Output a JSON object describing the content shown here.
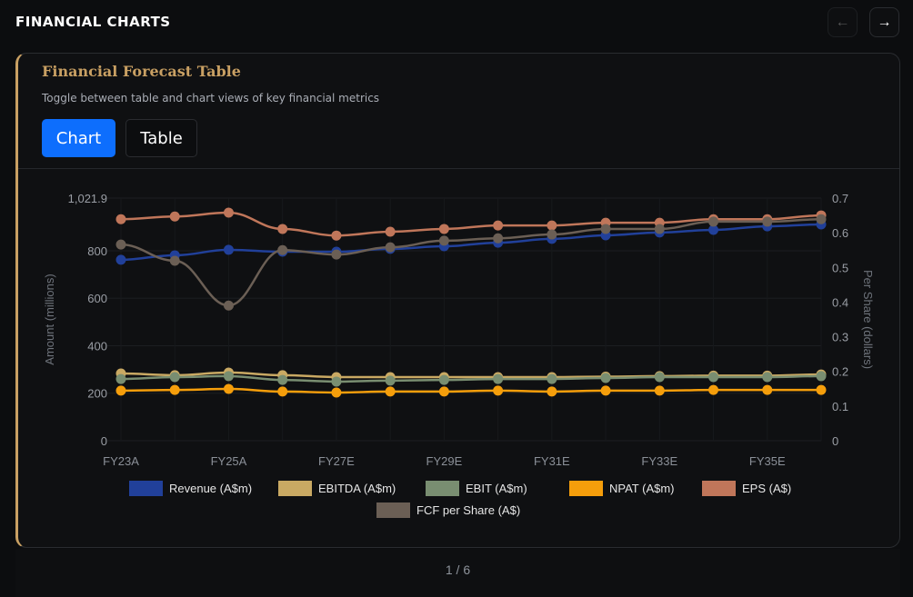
{
  "header": {
    "title": "FINANCIAL CHARTS",
    "prev_icon": "arrow-left-icon",
    "next_icon": "arrow-right-icon",
    "prev_label": "←",
    "next_label": "→"
  },
  "card": {
    "title": "Financial Forecast Table",
    "subtitle": "Toggle between table and chart views of key financial metrics",
    "toggle": {
      "chart_label": "Chart",
      "table_label": "Table",
      "active": "Chart",
      "active_color": "#0d6efd"
    },
    "accent_color": "#c9a063"
  },
  "chart_data": {
    "type": "line",
    "categories": [
      "FY23A",
      "FY24A",
      "FY25A",
      "FY26E",
      "FY27E",
      "FY28E",
      "FY29E",
      "FY30E",
      "FY31E",
      "FY32E",
      "FY33E",
      "FY34E",
      "FY35E",
      "FY36E"
    ],
    "x_tick_labels": [
      "FY23A",
      "FY25A",
      "FY27E",
      "FY29E",
      "FY31E",
      "FY33E",
      "FY35E"
    ],
    "ylabel_left": "Amount (millions)",
    "ylabel_right": "Per Share (dollars)",
    "ylim_left": [
      0,
      1021.9
    ],
    "yticks_left": [
      "0",
      "200",
      "400",
      "600",
      "800",
      "1,021.9"
    ],
    "ylim_right": [
      0,
      0.7
    ],
    "yticks_right": [
      "0",
      "0.1",
      "0.2",
      "0.3",
      "0.4",
      "0.5",
      "0.6",
      "0.7"
    ],
    "grid": true,
    "legend_position": "bottom",
    "series": [
      {
        "name": "Revenue (A$m)",
        "axis": "left",
        "color": "#21409a",
        "values": [
          762,
          781,
          804,
          796,
          796,
          808,
          819,
          834,
          850,
          865,
          877,
          888,
          903,
          911
        ]
      },
      {
        "name": "EBITDA (A$m)",
        "axis": "left",
        "color": "#c9a963",
        "values": [
          283,
          276,
          287,
          276,
          268,
          268,
          268,
          268,
          268,
          270,
          272,
          274,
          274,
          279
        ]
      },
      {
        "name": "EBIT (A$m)",
        "axis": "left",
        "color": "#798e71",
        "values": [
          260,
          268,
          272,
          256,
          249,
          253,
          256,
          260,
          260,
          264,
          268,
          268,
          268,
          272
        ]
      },
      {
        "name": "NPAT (A$m)",
        "axis": "left",
        "color": "#f59e0b",
        "values": [
          211,
          214,
          218,
          207,
          203,
          207,
          207,
          211,
          207,
          211,
          211,
          214,
          214,
          214
        ]
      },
      {
        "name": "EPS (A$)",
        "axis": "right",
        "color": "#c0765a",
        "values": [
          0.639,
          0.647,
          0.658,
          0.611,
          0.592,
          0.603,
          0.611,
          0.621,
          0.621,
          0.629,
          0.629,
          0.639,
          0.639,
          0.65
        ]
      },
      {
        "name": "FCF per Share (A$)",
        "axis": "right",
        "color": "#6b5f55",
        "values": [
          0.566,
          0.519,
          0.39,
          0.55,
          0.537,
          0.558,
          0.577,
          0.584,
          0.595,
          0.611,
          0.611,
          0.632,
          0.632,
          0.639
        ]
      }
    ]
  },
  "footer": {
    "pager": "1 / 6"
  }
}
